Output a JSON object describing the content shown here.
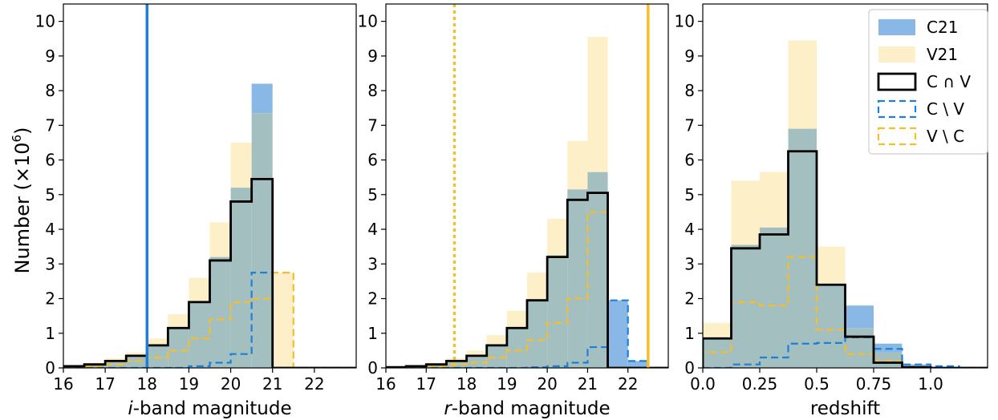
{
  "figure": {
    "ylabel_main": "Number (×10",
    "ylabel_exp": "6",
    "ylabel_close": ")"
  },
  "colors": {
    "c21_fill": "#8ab8e6",
    "v21_fill": "#fdefc8",
    "overlap_fill": "#a3bfbf",
    "c_and_v_line": "#000000",
    "c_minus_v_line": "#1e7fd9",
    "v_minus_c_line": "#f5be2a",
    "blue_vline": "#1e7fd9",
    "orange_vline": "#f5be2a"
  },
  "legend": {
    "placement": "top-right of third panel",
    "items": [
      {
        "key": "C21",
        "label": "C21",
        "style": "fill-blue"
      },
      {
        "key": "V21",
        "label": "V21",
        "style": "fill-yellow"
      },
      {
        "key": "CV",
        "label": "C ∩ V",
        "style": "solid-black"
      },
      {
        "key": "CnotV",
        "label": "C \\ V",
        "style": "dashed-blue"
      },
      {
        "key": "VnotC",
        "label": "V \\ C",
        "style": "dashed-yellow"
      }
    ]
  },
  "chart_data": [
    {
      "type": "histogram",
      "xlabel_italic": "i",
      "xlabel_rest": "-band magnitude",
      "ylabel": "Number (×10^6)",
      "xlim": [
        16,
        23
      ],
      "ylim": [
        0,
        10.5
      ],
      "xticks": [
        16,
        17,
        18,
        19,
        20,
        21,
        22
      ],
      "xtick_labels": [
        "16",
        "17",
        "18",
        "19",
        "20",
        "21",
        "22"
      ],
      "yticks": [
        0,
        1,
        2,
        3,
        4,
        5,
        6,
        7,
        8,
        9,
        10
      ],
      "ytick_labels": [
        "0",
        "1",
        "2",
        "3",
        "4",
        "5",
        "6",
        "7",
        "8",
        "9",
        "10"
      ],
      "show_yticklabels": true,
      "bin_edges": [
        16,
        16.5,
        17,
        17.5,
        18,
        18.5,
        19,
        19.5,
        20,
        20.5,
        21,
        21.5,
        22,
        22.5,
        23
      ],
      "series": [
        {
          "key": "C21",
          "values": [
            0.05,
            0.1,
            0.2,
            0.35,
            0.65,
            1.15,
            1.9,
            3.2,
            5.2,
            8.2,
            0,
            0,
            0,
            0
          ]
        },
        {
          "key": "V21",
          "values": [
            0.08,
            0.15,
            0.28,
            0.45,
            0.85,
            1.55,
            2.6,
            4.2,
            6.5,
            7.35,
            2.75,
            0,
            0,
            0
          ]
        },
        {
          "key": "CV",
          "values": [
            0.05,
            0.1,
            0.2,
            0.35,
            0.65,
            1.15,
            1.9,
            3.1,
            4.8,
            5.45,
            0,
            0,
            0,
            0
          ]
        },
        {
          "key": "CnotV",
          "values": [
            0,
            0,
            0,
            0,
            0,
            0,
            0.05,
            0.15,
            0.4,
            2.75,
            0,
            0,
            0,
            0
          ]
        },
        {
          "key": "VnotC",
          "values": [
            0.02,
            0.05,
            0.1,
            0.2,
            0.3,
            0.5,
            0.85,
            1.4,
            1.9,
            2.0,
            2.75,
            0,
            0,
            0
          ]
        }
      ],
      "vlines": [
        {
          "x": 18,
          "color": "blue",
          "style": "solid"
        }
      ]
    },
    {
      "type": "histogram",
      "xlabel_italic": "r",
      "xlabel_rest": "-band magnitude",
      "xlim": [
        16,
        23
      ],
      "ylim": [
        0,
        10.5
      ],
      "xticks": [
        16,
        17,
        18,
        19,
        20,
        21,
        22
      ],
      "xtick_labels": [
        "16",
        "17",
        "18",
        "19",
        "20",
        "21",
        "22"
      ],
      "yticks": [
        0,
        1,
        2,
        3,
        4,
        5,
        6,
        7,
        8,
        9,
        10
      ],
      "ytick_labels": [
        "0",
        "1",
        "2",
        "3",
        "4",
        "5",
        "6",
        "7",
        "8",
        "9",
        "10"
      ],
      "show_yticklabels": true,
      "bin_edges": [
        16,
        16.5,
        17,
        17.5,
        18,
        18.5,
        19,
        19.5,
        20,
        20.5,
        21,
        21.5,
        22,
        22.5,
        23
      ],
      "series": [
        {
          "key": "C21",
          "values": [
            0.02,
            0.05,
            0.1,
            0.2,
            0.35,
            0.65,
            1.15,
            1.95,
            3.25,
            5.15,
            5.65,
            1.95,
            0.2,
            0
          ]
        },
        {
          "key": "V21",
          "values": [
            0.03,
            0.07,
            0.15,
            0.28,
            0.5,
            0.95,
            1.65,
            2.75,
            4.3,
            6.55,
            9.55,
            0,
            0,
            0
          ]
        },
        {
          "key": "CV",
          "values": [
            0.02,
            0.05,
            0.1,
            0.2,
            0.35,
            0.65,
            1.15,
            1.95,
            3.2,
            4.85,
            5.05,
            0,
            0,
            0
          ]
        },
        {
          "key": "CnotV",
          "values": [
            0,
            0,
            0,
            0,
            0,
            0,
            0,
            0.02,
            0.05,
            0.15,
            0.6,
            1.95,
            0.2,
            0
          ]
        },
        {
          "key": "VnotC",
          "values": [
            0.01,
            0.02,
            0.05,
            0.1,
            0.15,
            0.3,
            0.5,
            0.8,
            1.3,
            2.0,
            4.5,
            0,
            0,
            0
          ]
        }
      ],
      "vlines": [
        {
          "x": 17.7,
          "color": "orange",
          "style": "dotted"
        },
        {
          "x": 22.5,
          "color": "orange",
          "style": "solid"
        }
      ]
    },
    {
      "type": "histogram",
      "xlabel_italic": "",
      "xlabel_rest": "redshift",
      "xlim": [
        0,
        1.25
      ],
      "ylim": [
        0,
        10.5
      ],
      "xticks": [
        0,
        0.25,
        0.5,
        0.75,
        1.0
      ],
      "xtick_labels": [
        "0.0",
        "0.25",
        "0.5",
        "0.75",
        "1.0"
      ],
      "yticks": [
        0,
        1,
        2,
        3,
        4,
        5,
        6,
        7,
        8,
        9,
        10
      ],
      "ytick_labels": [
        "0",
        "1",
        "2",
        "3",
        "4",
        "5",
        "6",
        "7",
        "8",
        "9",
        "10"
      ],
      "show_yticklabels": true,
      "bin_edges": [
        0,
        0.125,
        0.25,
        0.375,
        0.5,
        0.625,
        0.75,
        0.875,
        1.0,
        1.125,
        1.25
      ],
      "series": [
        {
          "key": "C21",
          "values": [
            0.85,
            3.55,
            4.05,
            6.9,
            2.4,
            1.8,
            0.7,
            0.1,
            0,
            0
          ]
        },
        {
          "key": "V21",
          "values": [
            1.3,
            5.4,
            5.65,
            9.45,
            3.5,
            1.15,
            0.45,
            0.05,
            0,
            0
          ]
        },
        {
          "key": "CV",
          "values": [
            0.85,
            3.45,
            3.85,
            6.25,
            2.4,
            0.9,
            0.15,
            0.02,
            0,
            0
          ]
        },
        {
          "key": "CnotV",
          "values": [
            0,
            0.1,
            0.3,
            0.7,
            0.72,
            0.88,
            0.55,
            0.1,
            0.05,
            0
          ]
        },
        {
          "key": "VnotC",
          "values": [
            0.45,
            1.9,
            1.8,
            3.2,
            1.1,
            0.4,
            0.2,
            0.02,
            0,
            0
          ]
        }
      ],
      "vlines": []
    }
  ]
}
